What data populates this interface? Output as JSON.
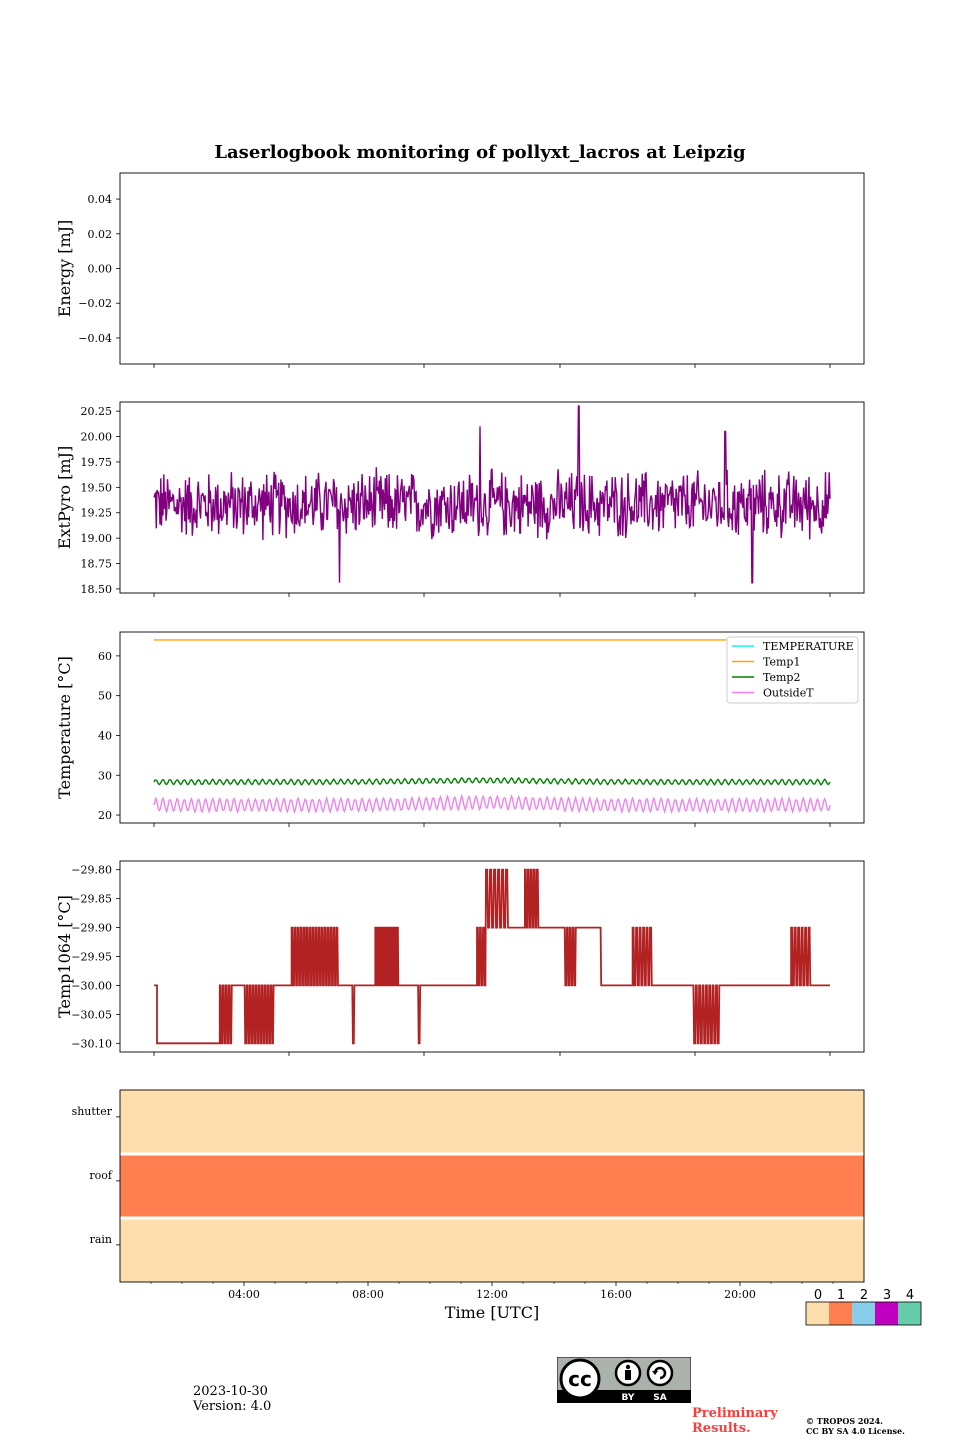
{
  "title": "Laserlogbook monitoring of pollyxt_lacros at Leipzig",
  "footer": {
    "date": "2023-10-30",
    "version": "Version: 4.0",
    "preliminary_line1": "Preliminary",
    "preliminary_line2": "Results.",
    "copyright_line1": "© TROPOS 2024.",
    "copyright_line2": "CC BY SA 4.0 License.",
    "license_badge": {
      "by": "BY",
      "sa": "SA",
      "icon": "cc-icon"
    }
  },
  "colors": {
    "extpyro": "#800080",
    "temperature": "#00ffff",
    "temp1": "#ffa500",
    "temp2": "#008000",
    "outsideT": "#ee82ee",
    "temp1064": "#b22222",
    "status_0": "#ffdead",
    "status_1": "#ff7f50",
    "status_2": "#87ceeb",
    "status_3": "#c000c0",
    "status_4": "#66cdaa"
  },
  "chart_data": [
    {
      "type": "line",
      "panel": "energy",
      "ylabel": "Energy [mJ]",
      "ylim": [
        -0.055,
        0.055
      ],
      "yticks": [
        "0.04",
        "0.02",
        "0.00",
        "−0.02",
        "−0.04"
      ],
      "series": []
    },
    {
      "type": "line",
      "panel": "extpyro",
      "ylabel": "ExtPyro [mJ]",
      "ylim": [
        18.46,
        20.34
      ],
      "yticks": [
        "20.25",
        "20.00",
        "19.75",
        "19.50",
        "19.25",
        "19.00",
        "18.75",
        "18.50"
      ],
      "x_hours": [
        1.0,
        23.6
      ],
      "series": [
        {
          "color_key": "extpyro",
          "mean": 19.33,
          "spread": 0.32,
          "peaks": [
            [
              15.2,
              20.3
            ],
            [
              7.2,
              18.55
            ],
            [
              21.0,
              18.55
            ],
            [
              11.9,
              20.1
            ],
            [
              20.1,
              20.05
            ]
          ]
        }
      ]
    },
    {
      "type": "line",
      "panel": "temperature",
      "ylabel": "Temperature [°C]",
      "ylim": [
        18,
        66
      ],
      "yticks": [
        "60",
        "50",
        "40",
        "30",
        "20"
      ],
      "legend": [
        "TEMPERATURE",
        "Temp1",
        "Temp2",
        "OutsideT"
      ],
      "legend_placement": "top-right",
      "series": [
        {
          "name": "TEMPERATURE",
          "color_key": "temperature",
          "values": []
        },
        {
          "name": "Temp1",
          "color_key": "temp1",
          "x": [
            1.0,
            23.6
          ],
          "values": [
            64,
            64
          ]
        },
        {
          "name": "Temp2",
          "color_key": "temp2",
          "mean": 28.3,
          "amp": 0.6
        },
        {
          "name": "OutsideT",
          "color_key": "outsideT",
          "mean": 22.5,
          "amp": 1.5
        }
      ]
    },
    {
      "type": "line",
      "panel": "temp1064",
      "ylabel": "Temp1064 [°C]",
      "ylim": [
        -30.115,
        -29.785
      ],
      "yticks": [
        "−29.80",
        "−29.85",
        "−29.90",
        "−29.95",
        "−30.00",
        "−30.05",
        "−30.10"
      ],
      "series": [
        {
          "color_key": "temp1064",
          "segments": [
            [
              1.0,
              1.1,
              -30.0,
              -30.1,
              0
            ],
            [
              1.1,
              3.2,
              -30.1,
              -30.1,
              0
            ],
            [
              3.2,
              3.6,
              -30.0,
              -30.1,
              4
            ],
            [
              3.6,
              4.0,
              -30.0,
              -30.0,
              0
            ],
            [
              4.0,
              5.0,
              -30.0,
              -30.1,
              10
            ],
            [
              5.0,
              5.6,
              -30.0,
              -30.0,
              0
            ],
            [
              5.6,
              7.2,
              -29.9,
              -30.0,
              16
            ],
            [
              7.2,
              7.6,
              -30.0,
              -30.0,
              0
            ],
            [
              7.6,
              7.7,
              -30.0,
              -30.1,
              1
            ],
            [
              7.7,
              8.4,
              -30.0,
              -30.0,
              0
            ],
            [
              8.4,
              9.2,
              -29.9,
              -30.0,
              12
            ],
            [
              9.2,
              9.8,
              -30.0,
              -30.0,
              0
            ],
            [
              9.8,
              9.9,
              -30.0,
              -30.1,
              1
            ],
            [
              9.9,
              11.8,
              -30.0,
              -30.0,
              0
            ],
            [
              11.8,
              12.1,
              -29.9,
              -30.0,
              3
            ],
            [
              12.1,
              12.9,
              -29.8,
              -29.9,
              6
            ],
            [
              12.9,
              13.4,
              -29.9,
              -29.9,
              0
            ],
            [
              13.4,
              13.9,
              -29.8,
              -29.9,
              5
            ],
            [
              13.9,
              14.7,
              -29.9,
              -29.9,
              0
            ],
            [
              14.7,
              15.1,
              -29.9,
              -30.0,
              4
            ],
            [
              15.1,
              15.9,
              -29.9,
              -29.9,
              0
            ],
            [
              15.9,
              16.0,
              -29.9,
              -30.0,
              1
            ],
            [
              16.0,
              17.0,
              -30.0,
              -30.0,
              0
            ],
            [
              17.0,
              17.7,
              -29.9,
              -30.0,
              6
            ],
            [
              17.7,
              19.0,
              -30.0,
              -30.0,
              0
            ],
            [
              19.0,
              19.9,
              -30.0,
              -30.1,
              8
            ],
            [
              19.9,
              22.3,
              -30.0,
              -30.0,
              0
            ],
            [
              22.3,
              23.0,
              -29.9,
              -30.0,
              6
            ],
            [
              23.0,
              23.6,
              -30.0,
              -30.0,
              0
            ]
          ]
        }
      ]
    },
    {
      "type": "heatmap",
      "panel": "status",
      "rows": [
        "shutter",
        "roof",
        "rain"
      ],
      "row_status": [
        0,
        1,
        0
      ],
      "xlabel": "Time [UTC]",
      "xlim_hours": [
        0,
        24
      ],
      "xticks": [
        "04:00",
        "08:00",
        "12:00",
        "16:00",
        "20:00"
      ],
      "xtick_hours": [
        4,
        8,
        12,
        16,
        20
      ],
      "colorbar_labels": [
        "0",
        "1",
        "2",
        "3",
        "4"
      ]
    }
  ]
}
